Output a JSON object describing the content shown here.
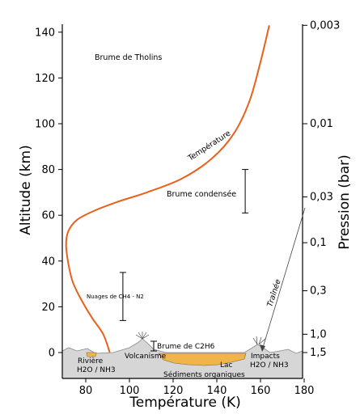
{
  "axes": {
    "xlabel": "Température (K)",
    "ylabel_left": "Altitude (km)",
    "ylabel_right": "Pression (bar)",
    "x_ticks": [
      "80",
      "100",
      "120",
      "140",
      "160",
      "180"
    ],
    "y_ticks": [
      "0",
      "20",
      "40",
      "60",
      "80",
      "100",
      "120",
      "140"
    ],
    "pressure_ticks": [
      "0,003",
      "0,01",
      "0,03",
      "0,1",
      "0,3",
      "1,0",
      "1,5"
    ]
  },
  "labels": {
    "tholins": "Brume de Tholins",
    "temperature_curve": "Température",
    "condensed_haze": "Brume condensée",
    "clouds": "Nuages de CH4 - N2",
    "trail": "Traînée",
    "ethane_haze": "Brume de C2H6",
    "river_1": "Rivière",
    "river_2": "H2O / NH3",
    "volcanism": "Volcanisme",
    "lake": "Lac",
    "sediments": "Sédiments organiques",
    "impacts_1": "Impacts",
    "impacts_2": "H2O / NH3"
  },
  "colors": {
    "temperature_curve": "#e8601c",
    "ground": "#d6d6d6",
    "lake": "#f0b44a"
  },
  "chart_data": {
    "type": "line",
    "xlabel": "Température (K)",
    "ylabel": "Altitude (km)",
    "xlim": [
      70,
      180
    ],
    "ylim": [
      -10,
      143
    ],
    "x_ticks": [
      80,
      100,
      120,
      140,
      160,
      180
    ],
    "y_ticks": [
      0,
      20,
      40,
      60,
      80,
      100,
      120,
      140
    ],
    "grid": false,
    "series": [
      {
        "name": "Température",
        "x": [
          91,
          88,
          83,
          78,
          74,
          72,
          71,
          72,
          76,
          84,
          95,
          108,
          124,
          138,
          148,
          155,
          160,
          164
        ],
        "y": [
          0,
          8,
          15,
          23,
          31,
          39,
          47,
          53,
          58,
          62,
          66,
          70,
          76,
          85,
          96,
          110,
          127,
          143
        ]
      }
    ],
    "secondary_axis": {
      "label": "Pression (bar)",
      "ticks": [
        {
          "label": "0,003",
          "altitude": 143
        },
        {
          "label": "0,01",
          "altitude": 100
        },
        {
          "label": "0,03",
          "altitude": 68
        },
        {
          "label": "0,1",
          "altitude": 48
        },
        {
          "label": "0,3",
          "altitude": 27
        },
        {
          "label": "1,0",
          "altitude": 8
        },
        {
          "label": "1,5",
          "altitude": 0
        }
      ]
    },
    "ranges": [
      {
        "label": "Brume condensée",
        "x": 153,
        "y_min": 61,
        "y_max": 80
      },
      {
        "label": "Nuages de CH4 - N2",
        "x": 97,
        "y_min": 14,
        "y_max": 35
      }
    ]
  }
}
